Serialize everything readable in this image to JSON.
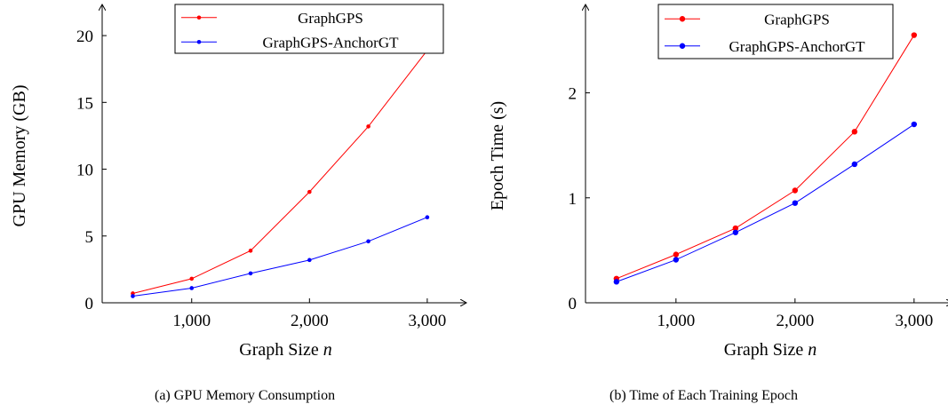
{
  "chart_data": [
    {
      "type": "line",
      "caption": "(a) GPU Memory Consumption",
      "xlabel": "Graph Size",
      "xlabel_var": "n",
      "ylabel": "GPU Memory (GB)",
      "x": [
        500,
        1000,
        1500,
        2000,
        2500,
        3000
      ],
      "xlim": [
        240,
        3280
      ],
      "ylim": [
        0,
        22
      ],
      "xticks": [
        1000,
        2000,
        3000
      ],
      "xtick_labels": [
        "1,000",
        "2,000",
        "3,000"
      ],
      "yticks": [
        0,
        5,
        10,
        15,
        20
      ],
      "ytick_labels": [
        "0",
        "5",
        "10",
        "15",
        "20"
      ],
      "legend_position": "top-right",
      "grid": false,
      "series": [
        {
          "name": "GraphGPS",
          "color": "#ff0000",
          "values": [
            0.7,
            1.8,
            3.9,
            8.3,
            13.2,
            18.9
          ]
        },
        {
          "name": "GraphGPS-AnchorGT",
          "color": "#0000ff",
          "values": [
            0.5,
            1.1,
            2.2,
            3.2,
            4.6,
            6.4
          ]
        }
      ]
    },
    {
      "type": "line",
      "caption": "(b) Time of Each Training Epoch",
      "xlabel": "Graph Size",
      "xlabel_var": "n",
      "ylabel": "Epoch Time (s)",
      "x": [
        500,
        1000,
        1500,
        2000,
        2500,
        3000
      ],
      "xlim": [
        240,
        3270
      ],
      "ylim": [
        0,
        2.8
      ],
      "xticks": [
        1000,
        2000,
        3000
      ],
      "xtick_labels": [
        "1,000",
        "2,000",
        "3,000"
      ],
      "yticks": [
        0,
        1,
        2
      ],
      "ytick_labels": [
        "0",
        "1",
        "2"
      ],
      "legend_position": "top-right",
      "grid": false,
      "series": [
        {
          "name": "GraphGPS",
          "color": "#ff0000",
          "values": [
            0.23,
            0.46,
            0.71,
            1.07,
            1.63,
            2.55
          ]
        },
        {
          "name": "GraphGPS-AnchorGT",
          "color": "#0000ff",
          "values": [
            0.2,
            0.41,
            0.67,
            0.95,
            1.32,
            1.7
          ]
        }
      ]
    }
  ]
}
